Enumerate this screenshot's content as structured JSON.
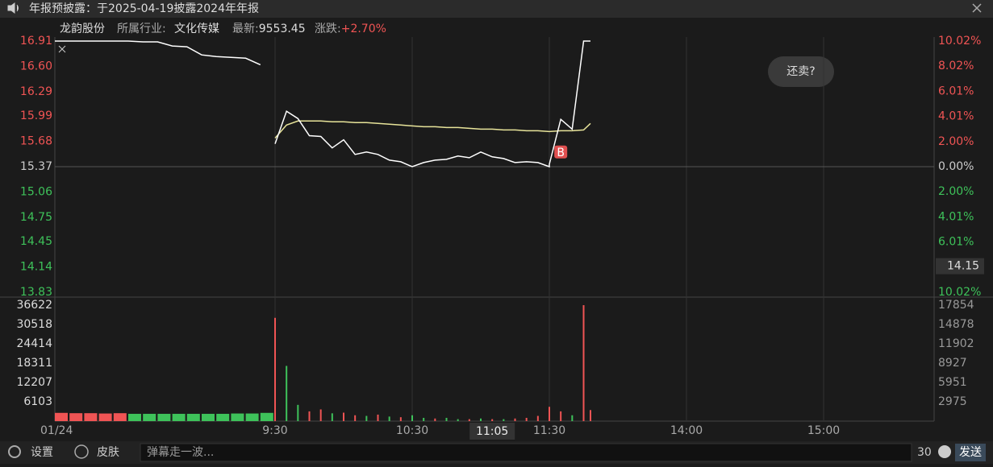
{
  "notice": "年报预披露：于2025-04-19披露2024年年报",
  "header": {
    "name": "龙韵股份",
    "industry_label": "所属行业:",
    "industry": "文化传媒",
    "latest_label": "最新:",
    "latest": "9553.45",
    "change_label": "涨跌:",
    "change": "+2.70%"
  },
  "bubble": "还卖?",
  "footer": {
    "settings": "设置",
    "skin": "皮肤",
    "placeholder": "弹幕走一波...",
    "count": "30",
    "send": "发送"
  },
  "chart_data": {
    "type": "line",
    "date": "01/24",
    "ylim": [
      13.83,
      16.91
    ],
    "yticks": [
      16.91,
      {
        "value": 16.6,
        "label": "16.60"
      },
      16.29,
      15.99,
      15.68,
      15.37,
      15.06,
      14.75,
      14.45,
      14.14,
      13.83
    ],
    "y2lim": [
      -10.02,
      10.02
    ],
    "y2ticks": [
      {
        "value": 10.02,
        "label": "10.02%"
      },
      {
        "value": 8.02,
        "label": "8.02%"
      },
      {
        "value": 6.01,
        "label": "6.01%"
      },
      {
        "value": 4.01,
        "label": "4.01%"
      },
      {
        "value": 2.0,
        "label": "2.00%"
      },
      {
        "value": 0,
        "label": "0.00%"
      },
      {
        "value": -2.0,
        "label": "2.00%"
      },
      {
        "value": -4.01,
        "label": "4.01%"
      },
      {
        "value": -6.01,
        "label": "6.01%"
      },
      {
        "value": -8.02,
        "label": "8.02%"
      },
      {
        "value": -10.02,
        "label": "10.02%"
      }
    ],
    "xticks": [
      "9:30",
      "10:30",
      "11:30",
      "14:00",
      "15:00"
    ],
    "x": [
      "9:30",
      "9:35",
      "9:40",
      "9:45",
      "9:50",
      "9:55",
      "10:00",
      "10:05",
      "10:10",
      "10:15",
      "10:20",
      "10:25",
      "10:30",
      "10:35",
      "10:40",
      "10:45",
      "10:50",
      "10:55",
      "11:00",
      "11:05",
      "11:10",
      "11:15",
      "11:20",
      "11:25",
      "11:30",
      "13:00",
      "13:05",
      "13:10",
      "13:15",
      "13:18"
    ],
    "price": {
      "color": "#ffffff",
      "values": [
        15.65,
        16.05,
        15.96,
        15.75,
        15.74,
        15.6,
        15.7,
        15.52,
        15.55,
        15.52,
        15.45,
        15.43,
        15.37,
        15.42,
        15.45,
        15.46,
        15.5,
        15.48,
        15.55,
        15.49,
        15.47,
        15.42,
        15.43,
        15.42,
        15.37,
        15.4,
        15.95,
        15.83,
        16.91,
        16.91
      ]
    },
    "avg_price": {
      "color": "#e8e49a",
      "values": [
        15.72,
        15.88,
        15.93,
        15.93,
        15.93,
        15.92,
        15.92,
        15.91,
        15.91,
        15.9,
        15.89,
        15.88,
        15.87,
        15.86,
        15.86,
        15.85,
        15.85,
        15.84,
        15.83,
        15.83,
        15.82,
        15.82,
        15.81,
        15.81,
        15.8,
        15.8,
        15.81,
        15.81,
        15.82,
        15.9
      ]
    },
    "volume": {
      "axis": "y2",
      "values": [
        15900,
        8500,
        2500,
        1500,
        1800,
        1200,
        1300,
        900,
        800,
        1000,
        700,
        600,
        900,
        500,
        400,
        500,
        300,
        300,
        400,
        300,
        300,
        400,
        500,
        800,
        300,
        2200,
        1500,
        900,
        17854,
        1700
      ],
      "bar_colors": [
        "#f05454",
        "#3ec25a",
        "#3ec25a",
        "#f05454",
        "#f05454",
        "#3ec25a",
        "#f05454",
        "#f05454",
        "#3ec25a",
        "#f05454",
        "#3ec25a",
        "#f05454",
        "#3ec25a",
        "#3ec25a",
        "#f05454",
        "#3ec25a",
        "#3ec25a",
        "#f05454",
        "#3ec25a",
        "#f05454",
        "#3ec25a",
        "#f05454",
        "#f05454",
        "#f05454",
        "#3ec25a",
        "#f05454",
        "#f05454",
        "#3ec25a",
        "#f05454",
        "#f05454"
      ]
    },
    "auction": {
      "x": [
        "9:15",
        "9:16",
        "9:17",
        "9:18",
        "9:19",
        "9:20",
        "9:21",
        "9:22",
        "9:23",
        "9:24",
        "9:25",
        "9:26",
        "9:27",
        "9:28",
        "9:29"
      ],
      "price": [
        16.91,
        16.91,
        16.91,
        16.91,
        16.91,
        16.91,
        16.9,
        16.9,
        16.85,
        16.84,
        16.74,
        16.72,
        16.71,
        16.7,
        16.62
      ],
      "volume": [
        2600,
        2500,
        2500,
        2400,
        2500,
        2300,
        2300,
        2300,
        2300,
        2300,
        2300,
        2300,
        2400,
        2400,
        2600
      ],
      "bar_colors": [
        "#f05454",
        "#f05454",
        "#f05454",
        "#f05454",
        "#f05454",
        "#3ec25a",
        "#3ec25a",
        "#3ec25a",
        "#3ec25a",
        "#3ec25a",
        "#3ec25a",
        "#3ec25a",
        "#3ec25a",
        "#3ec25a",
        "#3ec25a"
      ]
    },
    "volume_panel": {
      "ylim": [
        0,
        36622
      ],
      "yticks": [
        36622,
        30518,
        24414,
        18311,
        12207,
        6103
      ],
      "y2lim": [
        0,
        17854
      ],
      "y2ticks": [
        17854,
        14878,
        11902,
        8927,
        5951,
        2975
      ]
    },
    "crosshair": {
      "x": "11:05",
      "value": 14.15
    },
    "marker": {
      "label": "B",
      "x": "13:05",
      "value": 15.55
    }
  }
}
